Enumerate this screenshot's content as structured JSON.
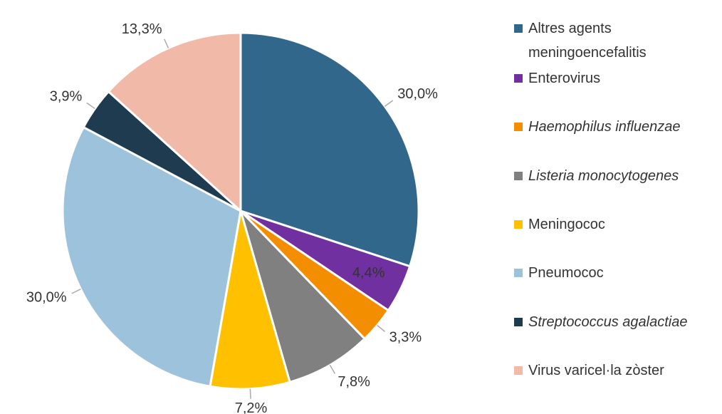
{
  "chart_data": {
    "type": "pie",
    "categories": [
      "Altres agents meningoencefalitis",
      "Enterovirus",
      "Haemophilus influenzae",
      "Listeria monocytogenes",
      "Meningococ",
      "Pneumococ",
      "Streptococcus agalactiae",
      "Virus varicel·la zòster"
    ],
    "values": [
      30.0,
      4.4,
      3.3,
      7.8,
      7.2,
      30.0,
      3.9,
      13.3
    ],
    "value_labels": [
      "30,0%",
      "4,4%",
      "3,3%",
      "7,8%",
      "7,2%",
      "30,0%",
      "3,9%",
      "13,3%"
    ],
    "colors": [
      "#31678a",
      "#7030a0",
      "#f28e00",
      "#808080",
      "#ffc000",
      "#9dc3dc",
      "#1f3b50",
      "#f1b9a7"
    ],
    "legend": "right"
  }
}
